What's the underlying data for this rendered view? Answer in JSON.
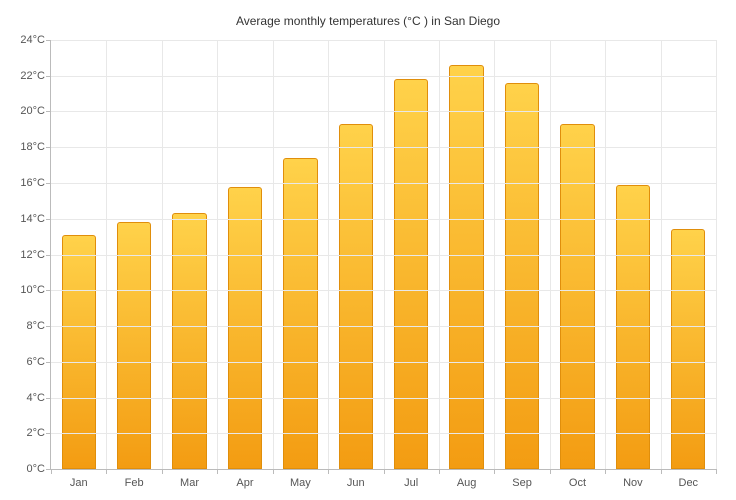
{
  "chart": {
    "type": "bar",
    "title": "Average monthly temperatures (°C ) in San Diego",
    "title_fontsize": 12,
    "title_color": "#333333",
    "categories": [
      "Jan",
      "Feb",
      "Mar",
      "Apr",
      "May",
      "Jun",
      "Jul",
      "Aug",
      "Sep",
      "Oct",
      "Nov",
      "Dec"
    ],
    "values": [
      13.1,
      13.8,
      14.3,
      15.8,
      17.4,
      19.3,
      21.8,
      22.6,
      21.6,
      19.3,
      15.9,
      13.4
    ],
    "ylim": [
      0,
      24
    ],
    "ytick_step": 2,
    "ytick_suffix": "°C",
    "bar_fill_top": "#ffd24a",
    "bar_fill_bottom": "#f39c12",
    "bar_border_color": "#e08e0b",
    "bar_width": 0.62,
    "background_color": "#ffffff",
    "grid_color": "#e8e8e8",
    "axis_color": "#bbbbbb",
    "label_color": "#555555",
    "label_fontsize": 11,
    "border_radius_top": 3
  }
}
